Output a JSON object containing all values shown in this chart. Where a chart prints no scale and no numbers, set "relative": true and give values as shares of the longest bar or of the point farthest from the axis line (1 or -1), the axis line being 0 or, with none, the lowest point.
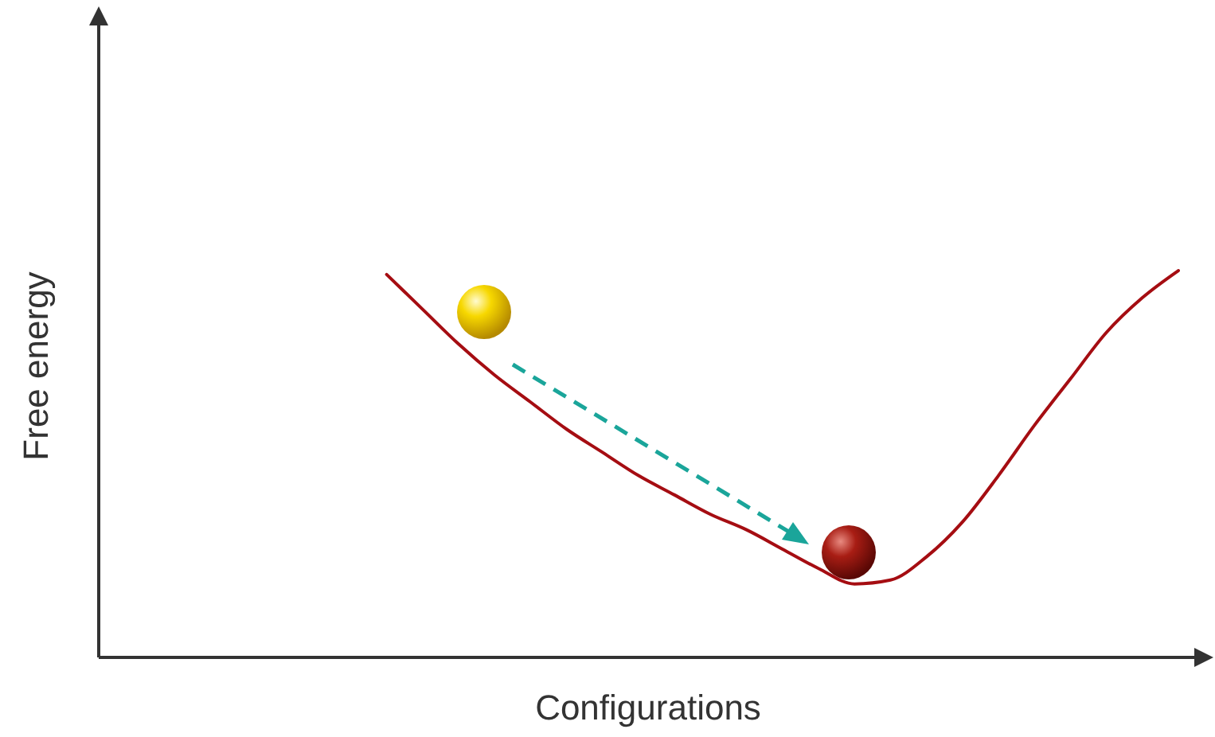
{
  "chart_data": {
    "type": "line",
    "xlabel": "Configurations",
    "ylabel": "Free energy",
    "relative": true,
    "categories": [
      null,
      null,
      null,
      null,
      null,
      null,
      null,
      null,
      null,
      null,
      null,
      null,
      null,
      null,
      null,
      null,
      null,
      null,
      null,
      null,
      null,
      null,
      null,
      null,
      null,
      null,
      null,
      null,
      null,
      null,
      null
    ],
    "series": [
      {
        "color": "#a50d12",
        "values": [
          null,
          null,
          null,
          null,
          null,
          null,
          null,
          null,
          0.99,
          0.9,
          0.81,
          0.73,
          0.66,
          0.59,
          0.53,
          0.47,
          0.42,
          0.37,
          0.33,
          0.28,
          0.23,
          0.19,
          0.2,
          0.26,
          0.35,
          0.47,
          0.6,
          0.72,
          0.84,
          0.93,
          1
        ]
      }
    ]
  }
}
